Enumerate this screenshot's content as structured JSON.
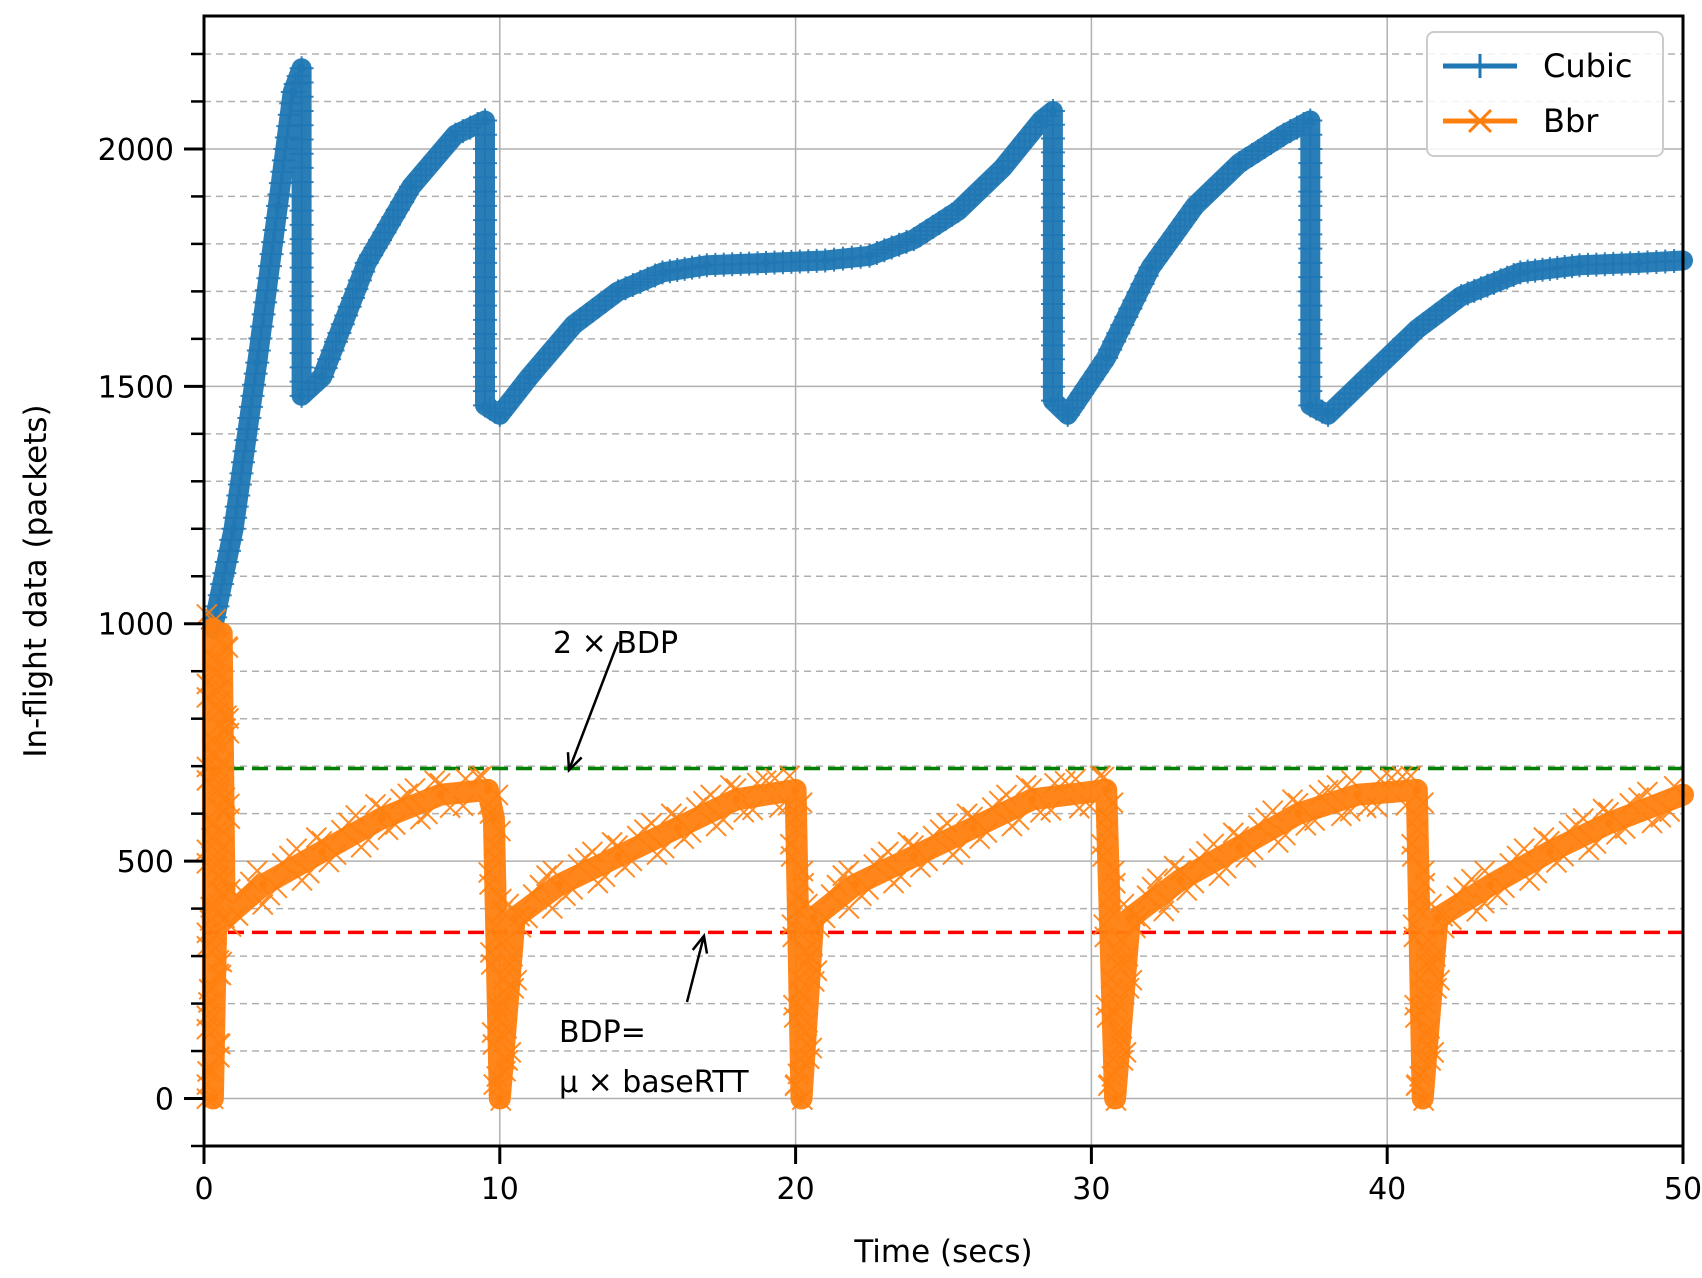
{
  "chart_data": {
    "type": "line",
    "title": "",
    "xlabel": "Time (secs)",
    "ylabel": "In-flight data (packets)",
    "xlim": [
      0,
      50
    ],
    "ylim": [
      -100,
      2280
    ],
    "xticks": [
      0,
      10,
      20,
      30,
      40,
      50
    ],
    "yticks": [
      0,
      500,
      1000,
      1500,
      2000
    ],
    "xtick_labels": [
      "0",
      "10",
      "20",
      "30",
      "40",
      "50"
    ],
    "ytick_labels": [
      "0",
      "500",
      "1000",
      "1500",
      "2000"
    ],
    "minor_ytick_step": 100,
    "grid": "major solid, minor dashed",
    "legend_position": "top-right",
    "series": [
      {
        "name": "Cubic",
        "color": "#1f77b4",
        "marker": "+",
        "points": [
          [
            0.3,
            990
          ],
          [
            1.0,
            1200
          ],
          [
            1.8,
            1550
          ],
          [
            2.5,
            1880
          ],
          [
            3.0,
            2120
          ],
          [
            3.3,
            2170
          ],
          [
            3.3,
            1480
          ],
          [
            4.0,
            1520
          ],
          [
            5.5,
            1760
          ],
          [
            7.0,
            1920
          ],
          [
            8.5,
            2030
          ],
          [
            9.5,
            2060
          ],
          [
            9.5,
            1460
          ],
          [
            10.0,
            1440
          ],
          [
            11.0,
            1520
          ],
          [
            12.5,
            1630
          ],
          [
            14.0,
            1700
          ],
          [
            15.5,
            1740
          ],
          [
            17.0,
            1755
          ],
          [
            19.0,
            1760
          ],
          [
            21.0,
            1765
          ],
          [
            22.5,
            1775
          ],
          [
            24.0,
            1810
          ],
          [
            25.5,
            1870
          ],
          [
            27.0,
            1960
          ],
          [
            28.3,
            2060
          ],
          [
            28.7,
            2080
          ],
          [
            28.7,
            1470
          ],
          [
            29.2,
            1440
          ],
          [
            30.5,
            1560
          ],
          [
            32.0,
            1750
          ],
          [
            33.5,
            1880
          ],
          [
            35.0,
            1970
          ],
          [
            36.5,
            2030
          ],
          [
            37.4,
            2060
          ],
          [
            37.4,
            1460
          ],
          [
            38.0,
            1440
          ],
          [
            39.5,
            1530
          ],
          [
            41.0,
            1620
          ],
          [
            42.5,
            1690
          ],
          [
            44.5,
            1740
          ],
          [
            46.5,
            1755
          ],
          [
            48.5,
            1760
          ],
          [
            50.0,
            1765
          ]
        ]
      },
      {
        "name": "Bbr",
        "color": "#ff7f0e",
        "marker": "x",
        "points": [
          [
            0.3,
            990
          ],
          [
            0.3,
            0
          ],
          [
            0.6,
            980
          ],
          [
            0.7,
            380
          ],
          [
            2.0,
            450
          ],
          [
            4.0,
            520
          ],
          [
            6.0,
            590
          ],
          [
            8.0,
            640
          ],
          [
            9.6,
            650
          ],
          [
            9.8,
            590
          ],
          [
            10.0,
            0
          ],
          [
            10.5,
            380
          ],
          [
            12.0,
            450
          ],
          [
            14.0,
            510
          ],
          [
            16.0,
            570
          ],
          [
            18.0,
            630
          ],
          [
            20.0,
            650
          ],
          [
            20.2,
            0
          ],
          [
            20.6,
            380
          ],
          [
            22.0,
            450
          ],
          [
            24.0,
            510
          ],
          [
            26.0,
            570
          ],
          [
            28.0,
            630
          ],
          [
            30.5,
            650
          ],
          [
            30.8,
            0
          ],
          [
            31.3,
            380
          ],
          [
            33.0,
            460
          ],
          [
            35.0,
            530
          ],
          [
            37.0,
            600
          ],
          [
            39.0,
            640
          ],
          [
            41.0,
            650
          ],
          [
            41.2,
            0
          ],
          [
            41.7,
            380
          ],
          [
            43.5,
            450
          ],
          [
            45.5,
            520
          ],
          [
            47.5,
            580
          ],
          [
            50.0,
            640
          ]
        ],
        "restart_times": [
          0.3,
          10.0,
          20.2,
          30.8,
          41.2
        ]
      }
    ],
    "reference_lines": [
      {
        "name": "2 × BDP",
        "y": 695,
        "color": "#008000",
        "style": "dashed"
      },
      {
        "name": "BDP = μ × baseRTT",
        "y": 350,
        "color": "#ff0000",
        "style": "dashed"
      }
    ],
    "annotations": [
      {
        "text": "2 × BDP",
        "x": 11.8,
        "y": 980,
        "arrow_to": [
          12.0,
          700
        ]
      },
      {
        "text_line1": "BDP=",
        "text_line2": "μ × baseRTT",
        "x": 12.0,
        "y": 140,
        "arrow_to": [
          16.8,
          330
        ]
      }
    ]
  },
  "colors": {
    "cubic": "#1f77b4",
    "bbr": "#ff7f0e",
    "two_bdp": "#008000",
    "bdp": "#ff0000",
    "grid": "#b0b0b0"
  }
}
